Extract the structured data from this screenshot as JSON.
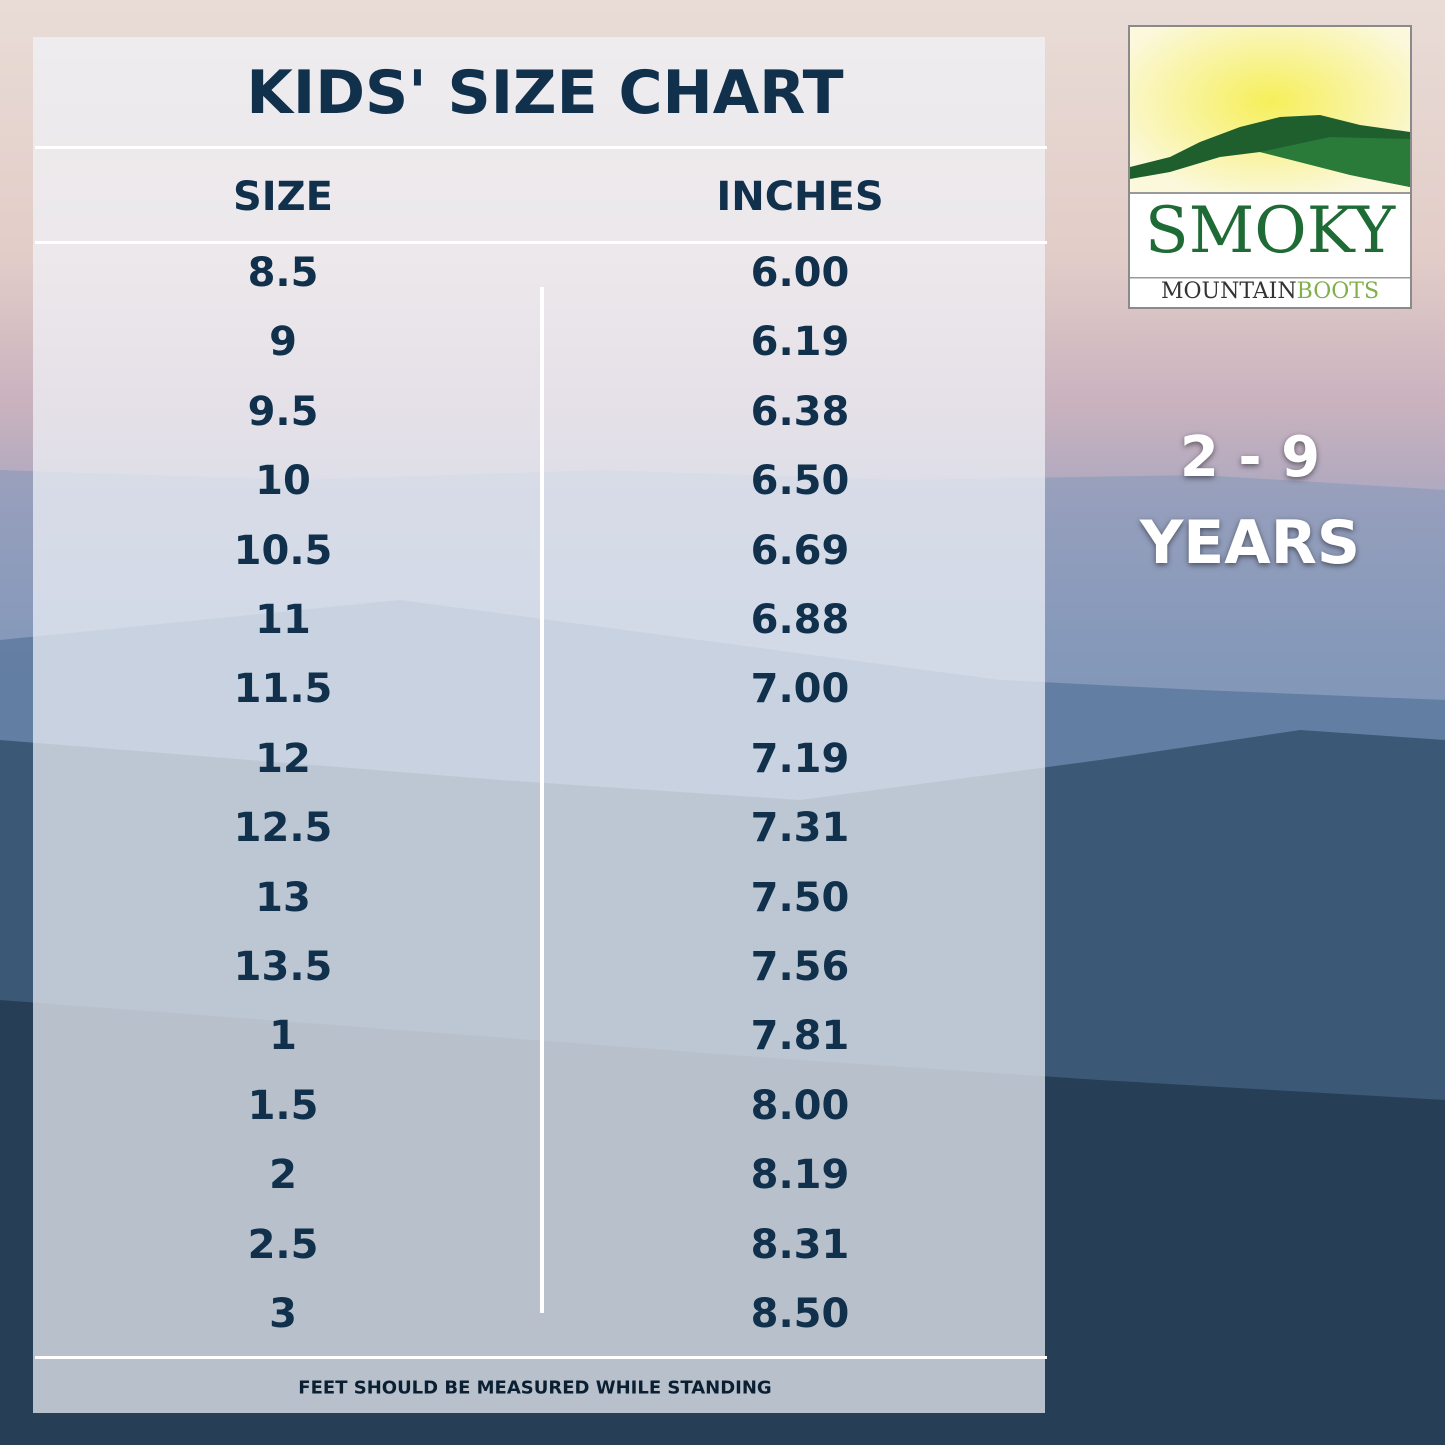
{
  "title": "KIDS' SIZE CHART",
  "columns": [
    "SIZE",
    "INCHES"
  ],
  "rows": [
    [
      "8.5",
      "6.00"
    ],
    [
      "9",
      "6.19"
    ],
    [
      "9.5",
      "6.38"
    ],
    [
      "10",
      "6.50"
    ],
    [
      "10.5",
      "6.69"
    ],
    [
      "11",
      "6.88"
    ],
    [
      "11.5",
      "7.00"
    ],
    [
      "12",
      "7.19"
    ],
    [
      "12.5",
      "7.31"
    ],
    [
      "13",
      "7.50"
    ],
    [
      "13.5",
      "7.56"
    ],
    [
      "1",
      "7.81"
    ],
    [
      "1.5",
      "8.00"
    ],
    [
      "2",
      "8.19"
    ],
    [
      "2.5",
      "8.31"
    ],
    [
      "3",
      "8.50"
    ]
  ],
  "footer": "FEET SHOULD BE MEASURED WHILE STANDING",
  "age_range": {
    "line1": "2 - 9",
    "line2": "YEARS"
  },
  "logo": {
    "word1": "SMOKY",
    "word2": "MOUNTAIN",
    "word3": "BOOTS"
  },
  "colors": {
    "text": "#10304c",
    "logo_green": "#1f6b35",
    "logo_light_green": "#7fb04a"
  }
}
